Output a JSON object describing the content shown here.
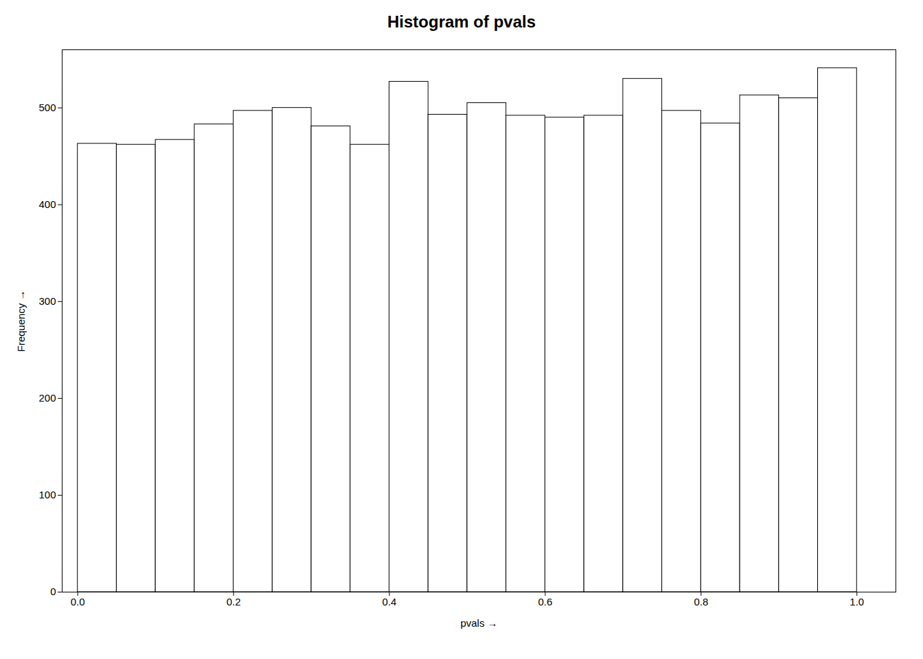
{
  "chart_data": {
    "type": "histogram",
    "title": "Histogram of pvals",
    "xlabel": "pvals",
    "ylabel": "Frequency",
    "bins": [
      0,
      0.05,
      0.1,
      0.15,
      0.2,
      0.25,
      0.3,
      0.35,
      0.4,
      0.45,
      0.5,
      0.55,
      0.6,
      0.65,
      0.7,
      0.75,
      0.8,
      0.85,
      0.9,
      0.95,
      1
    ],
    "values": [
      463,
      462,
      467,
      483,
      497,
      500,
      481,
      462,
      527,
      493,
      505,
      492,
      490,
      492,
      530,
      497,
      484,
      513,
      510,
      541
    ],
    "xlim": [
      -0.02,
      1.05
    ],
    "ylim": [
      0,
      560
    ],
    "xticks": [
      {
        "value": 0,
        "label": "0.0"
      },
      0.2,
      0.4,
      0.6,
      0.8,
      {
        "value": 1,
        "label": "1.0"
      }
    ],
    "yticks": [
      0,
      100,
      200,
      300,
      400,
      500
    ],
    "color": "white",
    "grid": false
  }
}
